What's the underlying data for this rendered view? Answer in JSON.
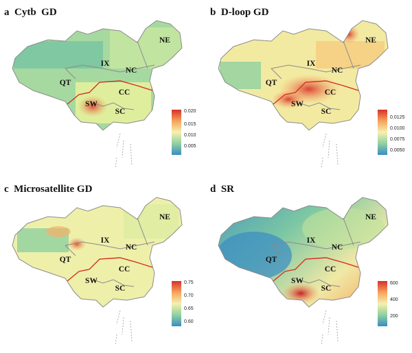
{
  "panels": [
    {
      "letter": "a",
      "title": "Cytb  GD",
      "legend_ticks": [
        "0.020",
        "0.015",
        "0.010",
        "0.005"
      ]
    },
    {
      "letter": "b",
      "title": "D-loop GD",
      "legend_ticks": [
        "0.0125",
        "0.0100",
        "0.0075",
        "0.0050"
      ]
    },
    {
      "letter": "c",
      "title": "Microsatellite GD",
      "legend_ticks": [
        "0.75",
        "0.70",
        "0.65",
        "0.60"
      ]
    },
    {
      "letter": "d",
      "title": "SR",
      "legend_ticks": [
        "600",
        "400",
        "200"
      ]
    }
  ],
  "regions": {
    "ne": "NE",
    "ix": "IX",
    "nc": "NC",
    "qt": "QT",
    "cc": "CC",
    "sw": "SW",
    "sc": "SC"
  },
  "colors": {
    "low": "#3a8cc4",
    "mid_low": "#8fd1a0",
    "mid": "#f5f0b0",
    "mid_high": "#f6a35a",
    "high": "#d7302c",
    "border": "#8a8a8a",
    "boundary_red": "#d62d1f"
  }
}
